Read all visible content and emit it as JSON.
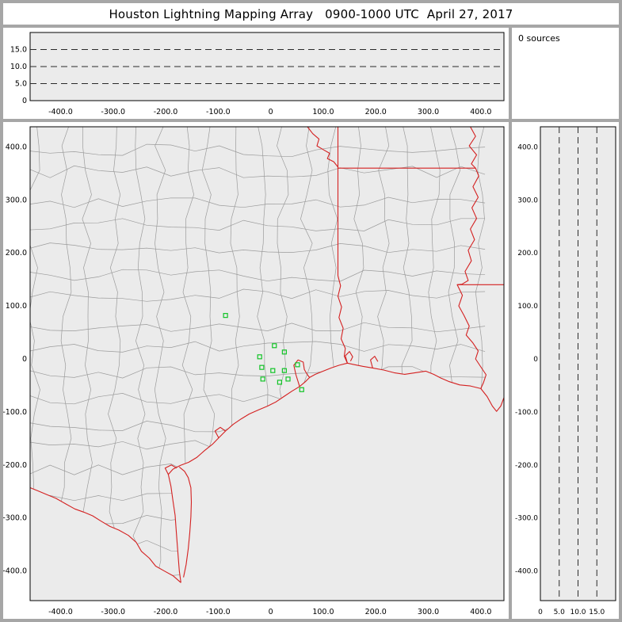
{
  "window": {
    "title": "Houston Lightning Mapping Array   0900-1000 UTC  April 27, 2017"
  },
  "status_panel": {
    "label": "0 sources"
  },
  "colors": {
    "frame": "#a6a6a6",
    "panel_bg": "#ffffff",
    "plot_bg": "#ebebeb",
    "county": "#9b9b9b",
    "boundary": "#d42020",
    "station": "#12c427",
    "dash": "#2a2a2a",
    "text": "#000000"
  },
  "chart_data": [
    {
      "id": "ew-altitude",
      "type": "scatter",
      "description": "Altitude (km) vs east-west distance (km), no source points plotted",
      "xlim": [
        -458,
        444
      ],
      "ylim": [
        0,
        20
      ],
      "x_ticks": [
        {
          "v": -400,
          "label": "-400.0"
        },
        {
          "v": -300,
          "label": "-300.0"
        },
        {
          "v": -200,
          "label": "-200.0"
        },
        {
          "v": -100,
          "label": "-100.0"
        },
        {
          "v": 0,
          "label": "0"
        },
        {
          "v": 100,
          "label": "100.0"
        },
        {
          "v": 200,
          "label": "200.0"
        },
        {
          "v": 300,
          "label": "300.0"
        },
        {
          "v": 400,
          "label": "400.0"
        }
      ],
      "y_ticks": [
        {
          "v": 15,
          "label": "15.0"
        },
        {
          "v": 10,
          "label": "10.0"
        },
        {
          "v": 5,
          "label": "5.0"
        },
        {
          "v": 0,
          "label": "0"
        }
      ],
      "dashed_levels": [
        5,
        10,
        15
      ],
      "points": []
    },
    {
      "id": "plan-map",
      "type": "scatter",
      "description": "Plan view map of SE Texas / Louisiana region with county and state boundaries; green squares are LMA stations; zero lightning sources",
      "xlim": [
        -458,
        444
      ],
      "ylim": [
        -456,
        438
      ],
      "x_ticks": [
        {
          "v": -400,
          "label": "-400.0"
        },
        {
          "v": -300,
          "label": "-300.0"
        },
        {
          "v": -200,
          "label": "-200.0"
        },
        {
          "v": -100,
          "label": "-100.0"
        },
        {
          "v": 0,
          "label": "0"
        },
        {
          "v": 100,
          "label": "100.0"
        },
        {
          "v": 200,
          "label": "200.0"
        },
        {
          "v": 300,
          "label": "300.0"
        },
        {
          "v": 400,
          "label": "400.0"
        }
      ],
      "y_ticks": [
        {
          "v": 400,
          "label": "400.0"
        },
        {
          "v": 300,
          "label": "300.0"
        },
        {
          "v": 200,
          "label": "200.0"
        },
        {
          "v": 100,
          "label": "100.0"
        },
        {
          "v": 0,
          "label": "0"
        },
        {
          "v": -100,
          "label": "-100.0"
        },
        {
          "v": -200,
          "label": "-200.0"
        },
        {
          "v": -300,
          "label": "-300.0"
        },
        {
          "v": -400,
          "label": "-400.0"
        }
      ],
      "stations_km": [
        [
          -86,
          82
        ],
        [
          7,
          25
        ],
        [
          -21,
          4
        ],
        [
          26,
          13
        ],
        [
          -17,
          -16
        ],
        [
          4,
          -22
        ],
        [
          26,
          -22
        ],
        [
          -15,
          -38
        ],
        [
          17,
          -44
        ],
        [
          51,
          -11
        ],
        [
          33,
          -38
        ],
        [
          59,
          -58
        ]
      ],
      "sources": []
    },
    {
      "id": "ns-altitude",
      "type": "scatter",
      "description": "North-south distance (km) vs altitude (km), no source points plotted",
      "xlim": [
        0,
        20
      ],
      "ylim": [
        -456,
        438
      ],
      "x_ticks": [
        {
          "v": 0,
          "label": "0"
        },
        {
          "v": 5,
          "label": "5.0"
        },
        {
          "v": 10,
          "label": "10.0"
        },
        {
          "v": 15,
          "label": "15.0"
        }
      ],
      "y_ticks": [
        {
          "v": 400,
          "label": "400.0"
        },
        {
          "v": 300,
          "label": "300.0"
        },
        {
          "v": 200,
          "label": "200.0"
        },
        {
          "v": 100,
          "label": "100.0"
        },
        {
          "v": 0,
          "label": "0"
        },
        {
          "v": -100,
          "label": "-100.0"
        },
        {
          "v": -200,
          "label": "-200.0"
        },
        {
          "v": -300,
          "label": "-300.0"
        },
        {
          "v": -400,
          "label": "-400.0"
        }
      ],
      "dashed_levels": [
        5,
        10,
        15
      ],
      "points": []
    }
  ]
}
